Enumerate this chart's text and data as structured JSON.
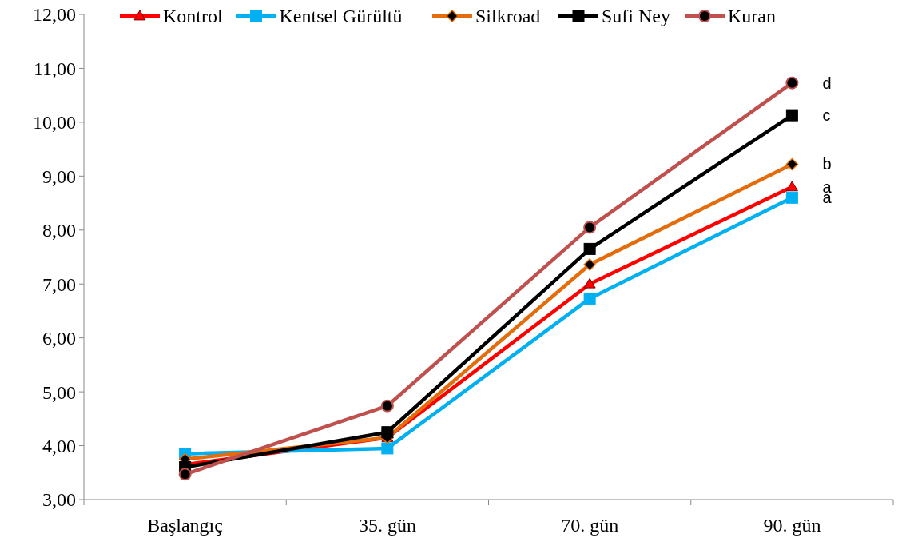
{
  "chart_data": {
    "type": "line",
    "categories": [
      "Başlangıç",
      "35. gün",
      "70. gün",
      "90. gün"
    ],
    "series": [
      {
        "name": "Kontrol",
        "color": "#ff0000",
        "marker": "triangle",
        "values": [
          3.65,
          4.15,
          7.0,
          8.8
        ]
      },
      {
        "name": "Kentsel Gürültü",
        "color": "#00b0f0",
        "marker": "square",
        "values": [
          3.85,
          3.95,
          6.73,
          8.6
        ]
      },
      {
        "name": "Silkroad",
        "color": "#e46c0a",
        "marker": "diamond",
        "values": [
          3.75,
          4.15,
          7.36,
          9.22
        ]
      },
      {
        "name": "Sufi Ney",
        "color": "#000000",
        "marker": "square",
        "values": [
          3.6,
          4.25,
          7.65,
          10.13
        ]
      },
      {
        "name": "Kuran",
        "color": "#c0504d",
        "marker": "circle",
        "values": [
          3.47,
          4.74,
          8.05,
          10.73
        ]
      }
    ],
    "ylim": [
      3,
      12
    ],
    "yticks": [
      {
        "value": 3,
        "label": "3,00"
      },
      {
        "value": 4,
        "label": "4,00"
      },
      {
        "value": 5,
        "label": "5,00"
      },
      {
        "value": 6,
        "label": "6,00"
      },
      {
        "value": 7,
        "label": "7,00"
      },
      {
        "value": 8,
        "label": "8,00"
      },
      {
        "value": 9,
        "label": "9,00"
      },
      {
        "value": 10,
        "label": "10,00"
      },
      {
        "value": 11,
        "label": "11,00"
      },
      {
        "value": 12,
        "label": "12,00"
      }
    ],
    "annotations": [
      {
        "text": "d",
        "x": "90. gün",
        "y": 10.73
      },
      {
        "text": "c",
        "x": "90. gün",
        "y": 10.13
      },
      {
        "text": "b",
        "x": "90. gün",
        "y": 9.22
      },
      {
        "text": "a",
        "x": "90. gün",
        "y": 8.8
      },
      {
        "text": "a",
        "x": "90. gün",
        "y": 8.6
      }
    ],
    "grid": false,
    "legend": "top",
    "line_style": "solid"
  }
}
